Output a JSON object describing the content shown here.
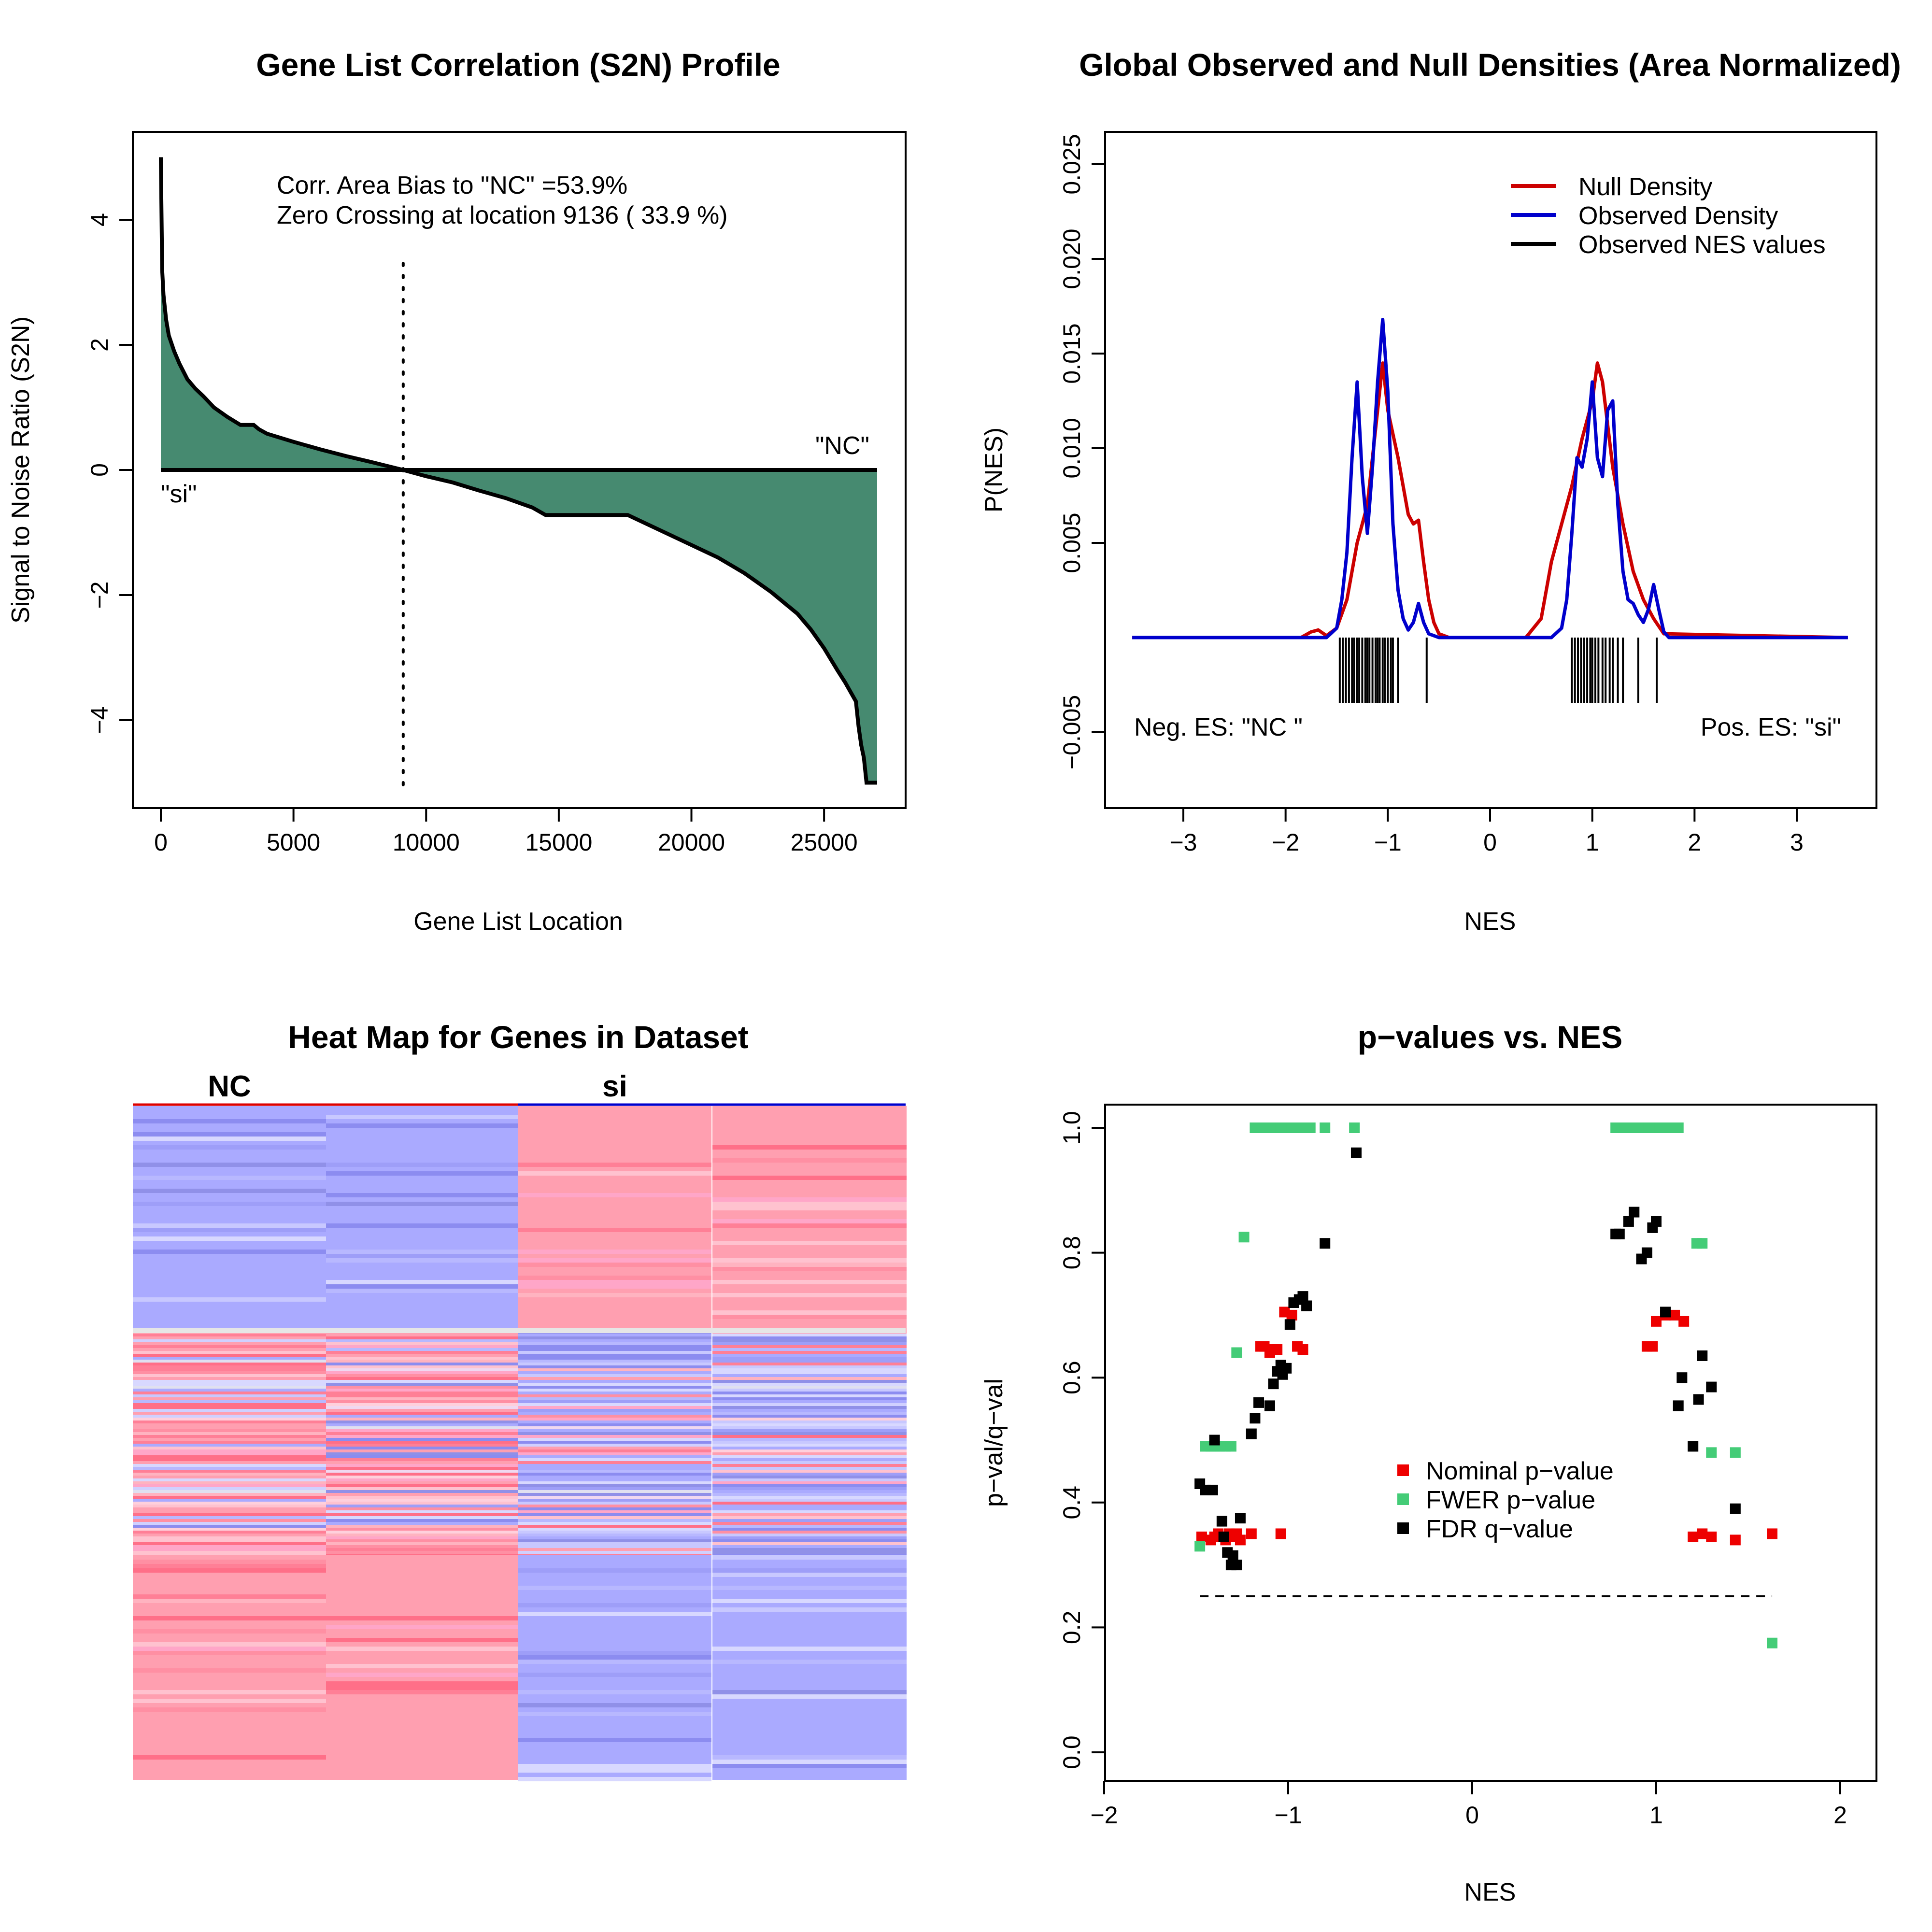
{
  "chart_data": [
    {
      "type": "area",
      "title": "Gene List Correlation (S2N) Profile",
      "xlabel": "Gene List Location",
      "ylabel": "Signal to Noise Ratio (S2N)",
      "xlim": [
        0,
        27000
      ],
      "ylim": [
        -5,
        5
      ],
      "x_ticks": [
        "0",
        "5000",
        "10000",
        "15000",
        "20000",
        "25000"
      ],
      "y_ticks": [
        "−4",
        "−2",
        "0",
        "2",
        "4"
      ],
      "annotations": [
        "Corr. Area Bias to \"NC\" =53.9%",
        "Zero Crossing at location  9136  ( 33.9  %)"
      ],
      "end_labels": {
        "left": "\"si\"",
        "right": "\"NC\""
      },
      "zero_crossing": 9136,
      "colors": {
        "fill": "#468a70",
        "line": "#000000"
      },
      "x": [
        0,
        50,
        100,
        200,
        300,
        500,
        700,
        1000,
        1300,
        1600,
        2000,
        2500,
        3000,
        3200,
        3500,
        3700,
        4000,
        5000,
        6000,
        7000,
        8000,
        9136,
        10000,
        11000,
        12000,
        13000,
        14000,
        14500,
        15000,
        16000,
        17000,
        17600,
        18000,
        19000,
        20000,
        21000,
        22000,
        22500,
        23000,
        24000,
        24500,
        25000,
        25500,
        25800,
        26000,
        26200,
        26300,
        26400,
        26500,
        26600,
        26700,
        26800,
        27000
      ],
      "values": [
        5.0,
        3.2,
        2.8,
        2.4,
        2.15,
        1.9,
        1.7,
        1.45,
        1.3,
        1.18,
        1.0,
        0.85,
        0.72,
        0.72,
        0.72,
        0.65,
        0.58,
        0.45,
        0.33,
        0.22,
        0.12,
        0.0,
        -0.1,
        -0.2,
        -0.33,
        -0.45,
        -0.6,
        -0.72,
        -0.72,
        -0.72,
        -0.72,
        -0.72,
        -0.8,
        -1.0,
        -1.2,
        -1.4,
        -1.65,
        -1.8,
        -1.95,
        -2.3,
        -2.55,
        -2.85,
        -3.2,
        -3.4,
        -3.55,
        -3.7,
        -4.1,
        -4.4,
        -4.6,
        -5.0,
        -5.0,
        -5.0,
        -5.0
      ]
    },
    {
      "type": "line",
      "title": "Global Observed and Null Densities (Area Normalized)",
      "xlabel": "NES",
      "ylabel": "P(NES)",
      "xlim": [
        -3.5,
        3.5
      ],
      "ylim": [
        -0.008,
        0.026
      ],
      "x_ticks": [
        "−3",
        "−2",
        "−1",
        "0",
        "1",
        "2",
        "3"
      ],
      "y_ticks": [
        "−0.005",
        "0.005",
        "0.010",
        "0.015",
        "0.020",
        "0.025"
      ],
      "legend_position": "top-right",
      "corner_labels": {
        "left": "Neg. ES: \"NC \"",
        "right": "Pos. ES: \"si\""
      },
      "series": [
        {
          "name": "Null Density",
          "color": "#cc0000",
          "x": [
            -3.5,
            -1.85,
            -1.75,
            -1.68,
            -1.6,
            -1.5,
            -1.4,
            -1.3,
            -1.2,
            -1.1,
            -1.05,
            -1.0,
            -0.9,
            -0.8,
            -0.75,
            -0.7,
            -0.65,
            -0.6,
            -0.55,
            -0.5,
            -0.4,
            0.35,
            0.5,
            0.6,
            0.7,
            0.8,
            0.9,
            1.0,
            1.05,
            1.1,
            1.2,
            1.3,
            1.4,
            1.5,
            1.6,
            1.7,
            3.5
          ],
          "y": [
            0,
            0,
            0.0003,
            0.0004,
            0.0001,
            0.0005,
            0.002,
            0.005,
            0.007,
            0.012,
            0.0145,
            0.012,
            0.0095,
            0.0065,
            0.006,
            0.0062,
            0.004,
            0.002,
            0.0008,
            0.0002,
            0,
            0,
            0.001,
            0.004,
            0.006,
            0.008,
            0.0105,
            0.0125,
            0.0145,
            0.0135,
            0.009,
            0.006,
            0.0035,
            0.002,
            0.001,
            0.0002,
            0
          ]
        },
        {
          "name": "Observed Density",
          "color": "#0000cc",
          "x": [
            -3.5,
            -1.6,
            -1.5,
            -1.45,
            -1.4,
            -1.35,
            -1.3,
            -1.25,
            -1.2,
            -1.15,
            -1.1,
            -1.05,
            -1.0,
            -0.95,
            -0.9,
            -0.85,
            -0.8,
            -0.75,
            -0.7,
            -0.65,
            -0.6,
            -0.55,
            -0.5,
            0.6,
            0.7,
            0.75,
            0.8,
            0.85,
            0.9,
            0.95,
            1.0,
            1.05,
            1.1,
            1.15,
            1.2,
            1.25,
            1.3,
            1.35,
            1.4,
            1.45,
            1.5,
            1.55,
            1.6,
            1.65,
            1.7,
            1.75,
            3.5
          ],
          "y": [
            0,
            0,
            0.0005,
            0.002,
            0.0045,
            0.0095,
            0.0135,
            0.0085,
            0.0055,
            0.009,
            0.0135,
            0.0168,
            0.013,
            0.006,
            0.0025,
            0.001,
            0.0004,
            0.0008,
            0.0018,
            0.0008,
            0.0002,
            0.0001,
            0,
            0,
            0.0005,
            0.002,
            0.0055,
            0.0095,
            0.009,
            0.0105,
            0.0135,
            0.0095,
            0.0085,
            0.012,
            0.0125,
            0.007,
            0.0035,
            0.002,
            0.0018,
            0.0012,
            0.0008,
            0.0015,
            0.0028,
            0.0015,
            0.0003,
            0,
            0
          ]
        }
      ],
      "observed_nes_values": {
        "name": "Observed NES values",
        "color": "#000000",
        "values": [
          -1.47,
          -1.44,
          -1.41,
          -1.38,
          -1.35,
          -1.33,
          -1.3,
          -1.28,
          -1.25,
          -1.22,
          -1.2,
          -1.18,
          -1.15,
          -1.12,
          -1.1,
          -1.08,
          -1.05,
          -1.03,
          -1.0,
          -0.97,
          -0.95,
          -0.9,
          -0.62,
          0.8,
          0.83,
          0.86,
          0.89,
          0.92,
          0.95,
          0.98,
          1.0,
          1.03,
          1.06,
          1.1,
          1.13,
          1.17,
          1.2,
          1.25,
          1.3,
          1.45,
          1.63
        ]
      }
    },
    {
      "type": "heatmap",
      "title": "Heat Map for Genes in Dataset",
      "columns": [
        "NC",
        "si"
      ],
      "colors": {
        "high": "#ff9fb0",
        "low": "#aaaaff",
        "group_nc": "#dd0000",
        "group_si": "#0000cc"
      }
    },
    {
      "type": "scatter",
      "title": "p−values vs. NES",
      "xlabel": "NES",
      "ylabel": "p−val/q−val",
      "xlim": [
        -2,
        2
      ],
      "ylim": [
        -0.04,
        1.04
      ],
      "x_ticks": [
        "−2",
        "−1",
        "0",
        "1",
        "2"
      ],
      "y_ticks": [
        "0.0",
        "0.2",
        "0.4",
        "0.6",
        "0.8",
        "1.0"
      ],
      "legend_position": "center",
      "threshold_line": 0.25,
      "series": [
        {
          "name": "Nominal p−value",
          "color": "#ee0000",
          "x": [
            -1.47,
            -1.42,
            -1.4,
            -1.38,
            -1.36,
            -1.34,
            -1.32,
            -1.3,
            -1.28,
            -1.26,
            -1.2,
            -1.15,
            -1.13,
            -1.1,
            -1.08,
            -1.06,
            -1.04,
            -1.02,
            -0.98,
            -0.95,
            -0.92,
            0.95,
            0.98,
            1.0,
            1.05,
            1.1,
            1.15,
            1.2,
            1.25,
            1.3,
            1.43,
            1.63
          ],
          "y": [
            0.345,
            0.34,
            0.345,
            0.35,
            0.345,
            0.34,
            0.35,
            0.345,
            0.35,
            0.34,
            0.35,
            0.65,
            0.65,
            0.64,
            0.645,
            0.645,
            0.35,
            0.705,
            0.7,
            0.65,
            0.645,
            0.65,
            0.65,
            0.69,
            0.7,
            0.7,
            0.69,
            0.345,
            0.35,
            0.345,
            0.34,
            0.35
          ]
        },
        {
          "name": "FWER p−value",
          "color": "#44cc77",
          "x": [
            -1.48,
            -1.45,
            -1.42,
            -1.4,
            -1.37,
            -1.34,
            -1.31,
            -1.28,
            -1.24,
            -1.18,
            -1.15,
            -1.12,
            -1.1,
            -1.08,
            -1.06,
            -1.04,
            -1.02,
            -1.0,
            -0.98,
            -0.95,
            -0.92,
            -0.88,
            -0.8,
            -0.64,
            0.78,
            0.8,
            0.83,
            0.86,
            0.9,
            0.93,
            0.96,
            0.99,
            1.02,
            1.05,
            1.08,
            1.12,
            1.22,
            1.25,
            1.3,
            1.43,
            1.63
          ],
          "y": [
            0.33,
            0.49,
            0.49,
            0.49,
            0.49,
            0.49,
            0.49,
            0.64,
            0.825,
            1.0,
            1.0,
            1.0,
            1.0,
            1.0,
            1.0,
            1.0,
            1.0,
            1.0,
            1.0,
            1.0,
            1.0,
            1.0,
            1.0,
            1.0,
            1.0,
            1.0,
            1.0,
            1.0,
            1.0,
            1.0,
            1.0,
            1.0,
            1.0,
            1.0,
            1.0,
            1.0,
            0.815,
            0.815,
            0.48,
            0.48,
            0.175
          ]
        },
        {
          "name": "FDR q−value",
          "color": "#000000",
          "x": [
            -1.48,
            -1.45,
            -1.41,
            -1.4,
            -1.36,
            -1.35,
            -1.33,
            -1.31,
            -1.3,
            -1.28,
            -1.26,
            -1.2,
            -1.18,
            -1.16,
            -1.1,
            -1.08,
            -1.06,
            -1.04,
            -1.03,
            -1.01,
            -0.99,
            -0.97,
            -0.94,
            -0.92,
            -0.9,
            -0.8,
            -0.63,
            0.78,
            0.8,
            0.85,
            0.88,
            0.92,
            0.95,
            0.98,
            1.0,
            1.05,
            1.12,
            1.14,
            1.2,
            1.23,
            1.25,
            1.3,
            1.43
          ],
          "y": [
            0.43,
            0.42,
            0.42,
            0.5,
            0.37,
            0.345,
            0.32,
            0.3,
            0.315,
            0.3,
            0.375,
            0.51,
            0.535,
            0.56,
            0.555,
            0.59,
            0.61,
            0.62,
            0.605,
            0.615,
            0.685,
            0.72,
            0.725,
            0.73,
            0.715,
            0.815,
            0.96,
            0.83,
            0.83,
            0.85,
            0.865,
            0.79,
            0.8,
            0.84,
            0.85,
            0.705,
            0.555,
            0.6,
            0.49,
            0.565,
            0.635,
            0.585,
            0.39
          ]
        }
      ]
    }
  ]
}
